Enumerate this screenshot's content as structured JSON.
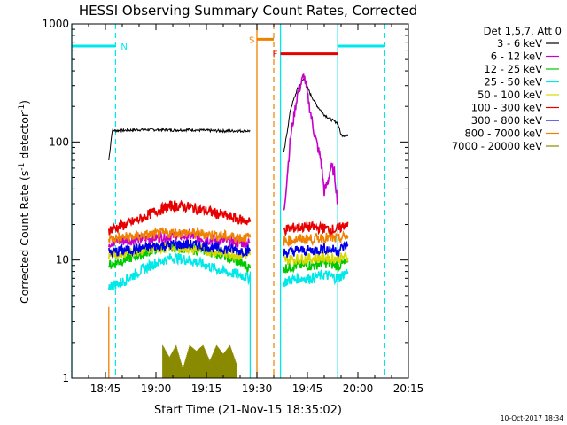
{
  "chart_data": {
    "type": "line",
    "title": "HESSI Observing Summary Count Rates, Corrected",
    "xlabel": "Start Time (21-Nov-15 18:35:02)",
    "ylabel_main": "Corrected Count Rate (s",
    "ylabel_sup1": "-1",
    "ylabel_mid": " detector",
    "ylabel_sup2": "-1",
    "ylabel_end": ")",
    "y_scale": "log",
    "ylim": [
      1,
      1000
    ],
    "xlim": [
      "18:35",
      "20:15"
    ],
    "x_ticks": [
      "18:45",
      "19:00",
      "19:15",
      "19:30",
      "19:45",
      "20:00",
      "20:15"
    ],
    "y_ticks": [
      "1",
      "10",
      "100",
      "1000"
    ],
    "footer_date": "10-Oct-2017 18:34",
    "legend_header": "Det 1,5,7, Att 0",
    "legend_position": "right",
    "series": [
      {
        "name": "3 - 6 keV",
        "color": "#000000",
        "segments": [
          {
            "x": [
              "18:46",
              "18:47",
              "18:50",
              "18:55",
              "19:00",
              "19:05",
              "19:10",
              "19:15",
              "19:20",
              "19:25",
              "19:28"
            ],
            "y": [
              70,
              125,
              125,
              127,
              127,
              126,
              127,
              125,
              124,
              124,
              124
            ]
          },
          {
            "x": [
              "19:38",
              "19:40",
              "19:42",
              "19:44",
              "19:45",
              "19:46",
              "19:48",
              "19:50",
              "19:52",
              "19:54",
              "19:55",
              "19:57"
            ],
            "y": [
              80,
              190,
              280,
              345,
              290,
              250,
              200,
              170,
              155,
              145,
              115,
              112
            ]
          }
        ]
      },
      {
        "name": "6 - 12 keV",
        "color": "#c800c8",
        "segments": [
          {
            "x": [
              "18:46",
              "18:50",
              "18:55",
              "19:00",
              "19:05",
              "19:10",
              "19:15",
              "19:20",
              "19:25",
              "19:28"
            ],
            "y": [
              14,
              14.5,
              15,
              15.5,
              16,
              16,
              15,
              14.5,
              14,
              14
            ]
          },
          {
            "x": [
              "19:38",
              "19:40",
              "19:42",
              "19:44",
              "19:45",
              "19:47",
              "19:49",
              "19:50",
              "19:51",
              "19:52",
              "19:53",
              "19:54"
            ],
            "y": [
              25,
              110,
              250,
              370,
              250,
              120,
              70,
              38,
              45,
              62,
              55,
              30
            ]
          }
        ]
      },
      {
        "name": "12 - 25 keV",
        "color": "#00c800",
        "segments": [
          {
            "x": [
              "18:46",
              "18:50",
              "18:55",
              "19:00",
              "19:05",
              "19:10",
              "19:15",
              "19:20",
              "19:25",
              "19:28"
            ],
            "y": [
              9,
              10,
              11,
              12.5,
              13,
              12.5,
              12,
              11,
              9.5,
              8.5
            ]
          },
          {
            "x": [
              "19:38",
              "19:42",
              "19:46",
              "19:50",
              "19:54",
              "19:57"
            ],
            "y": [
              8.5,
              9,
              9,
              9.5,
              9,
              9.5
            ]
          }
        ]
      },
      {
        "name": "25 - 50 keV",
        "color": "#00e8e8",
        "segments": [
          {
            "x": [
              "18:46",
              "18:50",
              "18:55",
              "19:00",
              "19:05",
              "19:10",
              "19:15",
              "19:20",
              "19:25",
              "19:28"
            ],
            "y": [
              6,
              6.5,
              8,
              9.5,
              10.5,
              10,
              9,
              8,
              7.5,
              7
            ]
          },
          {
            "x": [
              "19:38",
              "19:42",
              "19:46",
              "19:50",
              "19:54",
              "19:57"
            ],
            "y": [
              6.5,
              7,
              7,
              7.5,
              7,
              8
            ]
          }
        ]
      },
      {
        "name": "50 - 100 keV",
        "color": "#d8d800",
        "segments": [
          {
            "x": [
              "18:46",
              "18:50",
              "18:55",
              "19:00",
              "19:05",
              "19:10",
              "19:15",
              "19:20",
              "19:25",
              "19:28"
            ],
            "y": [
              11,
              11.5,
              12,
              12.5,
              13,
              12.5,
              12,
              11.5,
              11,
              11
            ]
          },
          {
            "x": [
              "19:38",
              "19:42",
              "19:46",
              "19:50",
              "19:54",
              "19:57"
            ],
            "y": [
              10,
              10.2,
              10.3,
              10.5,
              10.3,
              10.5
            ]
          }
        ]
      },
      {
        "name": "100 - 300 keV",
        "color": "#e80000",
        "segments": [
          {
            "x": [
              "18:46",
              "18:50",
              "18:55",
              "19:00",
              "19:05",
              "19:10",
              "19:15",
              "19:20",
              "19:25",
              "19:28"
            ],
            "y": [
              18,
              19.5,
              22,
              26,
              29,
              28,
              26,
              24,
              22,
              21
            ]
          },
          {
            "x": [
              "19:38",
              "19:42",
              "19:46",
              "19:50",
              "19:54",
              "19:57"
            ],
            "y": [
              18,
              19,
              19,
              18.5,
              18,
              21
            ]
          }
        ]
      },
      {
        "name": "300 - 800 keV",
        "color": "#0000e8",
        "segments": [
          {
            "x": [
              "18:46",
              "18:50",
              "18:55",
              "19:00",
              "19:05",
              "19:10",
              "19:15",
              "19:20",
              "19:25",
              "19:28"
            ],
            "y": [
              11.5,
              12,
              12.5,
              13,
              13.5,
              13.5,
              13,
              12.5,
              12,
              12
            ]
          },
          {
            "x": [
              "19:38",
              "19:42",
              "19:46",
              "19:50",
              "19:54",
              "19:57"
            ],
            "y": [
              11.5,
              12,
              12,
              12.5,
              12,
              13.5
            ]
          }
        ]
      },
      {
        "name": "800 - 7000 keV",
        "color": "#f08000",
        "segments": [
          {
            "x": [
              "18:46",
              "18:50",
              "18:55",
              "19:00",
              "19:05",
              "19:10",
              "19:15",
              "19:20",
              "19:25",
              "19:28"
            ],
            "y": [
              15,
              15.5,
              16,
              16.5,
              17,
              17,
              16.5,
              16,
              15.5,
              15.5
            ]
          },
          {
            "x": [
              "19:38",
              "19:42",
              "19:46",
              "19:50",
              "19:54",
              "19:57"
            ],
            "y": [
              14.5,
              15,
              15,
              15.5,
              15,
              16
            ]
          }
        ]
      },
      {
        "name": "7000 - 20000 keV",
        "color": "#8a8a00",
        "segments": [
          {
            "x": [
              "19:02",
              "19:04",
              "19:06",
              "19:08",
              "19:10",
              "19:12",
              "19:14",
              "19:16",
              "19:18",
              "19:20",
              "19:22",
              "19:24"
            ],
            "y": [
              1.9,
              1.5,
              1.9,
              1.2,
              1.9,
              1.7,
              1.9,
              1.4,
              1.9,
              1.6,
              1.9,
              1.3
            ]
          }
        ]
      }
    ],
    "annotations": {
      "bars": [
        {
          "label": "N",
          "color": "#00e8e8",
          "x_start": "18:35",
          "x_end": "18:48",
          "y": 650
        },
        {
          "label": "S",
          "color": "#f08000",
          "x_start": "19:30",
          "x_end": "19:35",
          "y": 740
        },
        {
          "label": "F",
          "color": "#e80000",
          "x_start": "19:37",
          "x_end": "19:54",
          "y": 560
        },
        {
          "label": "",
          "color": "#00e8e8",
          "x_start": "19:54",
          "x_end": "20:08",
          "y": 650
        }
      ],
      "solid_vlines": [
        {
          "x": "18:35",
          "color": "#00e8e8"
        },
        {
          "x": "19:30",
          "color": "#f08000"
        },
        {
          "x": "19:37",
          "color": "#00e8e8"
        },
        {
          "x": "19:54",
          "color": "#00e8e8"
        }
      ],
      "dashed_vlines": [
        {
          "x": "18:48",
          "color": "#00e8e8"
        },
        {
          "x": "19:35",
          "color": "#f08000"
        },
        {
          "x": "20:08",
          "color": "#00e8e8"
        }
      ],
      "partial_vlines": [
        {
          "x": "18:46",
          "color": "#f08000",
          "y_from": 1,
          "y_to": 4
        },
        {
          "x": "19:28",
          "color": "#00e8e8",
          "y_from": 1,
          "y_to": 8
        }
      ]
    }
  }
}
